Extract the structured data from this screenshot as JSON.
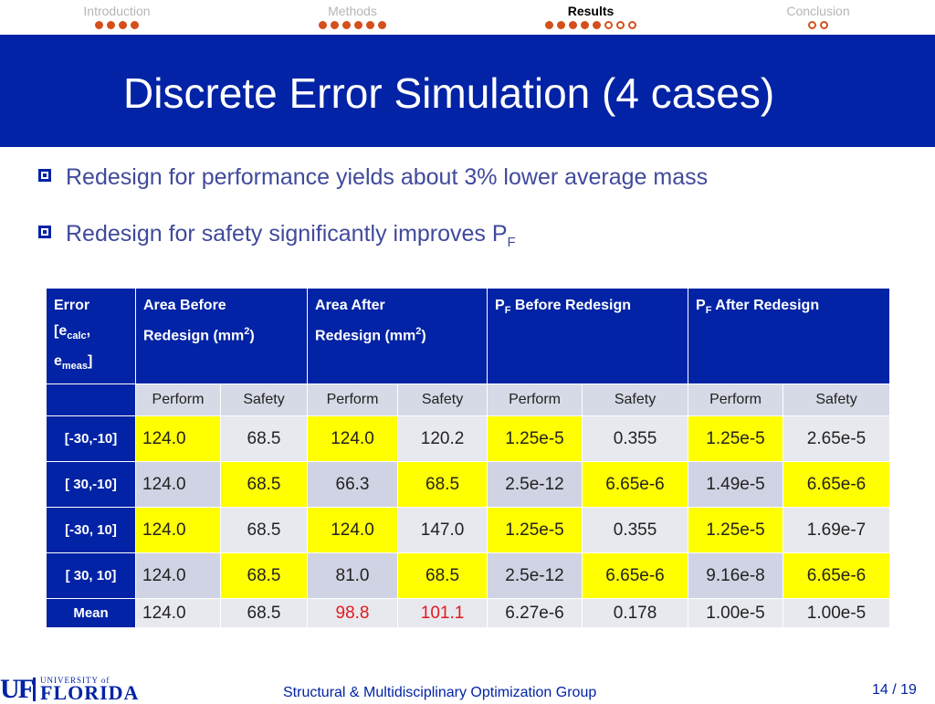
{
  "nav": {
    "sections": [
      {
        "label": "Introduction",
        "dots": [
          "filled",
          "filled",
          "filled",
          "filled"
        ],
        "active": false
      },
      {
        "label": "Methods",
        "dots": [
          "filled",
          "filled",
          "filled",
          "filled",
          "filled",
          "filled"
        ],
        "active": false
      },
      {
        "label": "Results",
        "dots": [
          "filled",
          "filled",
          "filled",
          "filled",
          "filled",
          "hollow",
          "hollow",
          "hollow"
        ],
        "active": true
      },
      {
        "label": "Conclusion",
        "dots": [
          "hollow",
          "hollow"
        ],
        "active": false
      }
    ]
  },
  "slide": {
    "title": "Discrete Error Simulation (4 cases)",
    "bullets": [
      {
        "text": "Redesign for performance yields about 3% lower average mass"
      },
      {
        "text": "Redesign for safety significantly improves P",
        "sub": "F"
      }
    ]
  },
  "table": {
    "headers": {
      "error_line1": "Error",
      "error_bracket": "[e",
      "error_calc": "calc",
      "error_comma": ",",
      "error_e": "e",
      "error_meas": "meas",
      "error_close": "]",
      "area_before_line1": "Area Before",
      "area_before_line2": "Redesign (mm",
      "area_before_sup": "2",
      "area_before_close": ")",
      "area_after_line1": "Area After",
      "area_after_line2": "Redesign (mm",
      "area_after_sup": "2",
      "area_after_close": ")",
      "pf_before_p": "P",
      "pf_before_sub": "F",
      "pf_before_rest": " Before Redesign",
      "pf_after_p": "P",
      "pf_after_sub": "F",
      "pf_after_rest": " After Redesign"
    },
    "subheaders": [
      "Perform",
      "Safety",
      "Perform",
      "Safety",
      "Perform",
      "Safety",
      "Perform",
      "Safety"
    ],
    "rows": [
      {
        "label": "[-30,-10]",
        "values": [
          "124.0",
          "68.5",
          "124.0",
          "120.2",
          "1.25e-5",
          "0.355",
          "1.25e-5",
          "2.65e-5"
        ]
      },
      {
        "label": "[ 30,-10]",
        "values": [
          "124.0",
          "68.5",
          "66.3",
          "68.5",
          "2.5e-12",
          "6.65e-6",
          "1.49e-5",
          "6.65e-6"
        ]
      },
      {
        "label": "[-30, 10]",
        "values": [
          "124.0",
          "68.5",
          "124.0",
          "147.0",
          "1.25e-5",
          "0.355",
          "1.25e-5",
          "1.69e-7"
        ]
      },
      {
        "label": "[ 30, 10]",
        "values": [
          "124.0",
          "68.5",
          "81.0",
          "68.5",
          "2.5e-12",
          "6.65e-6",
          "9.16e-8",
          "6.65e-6"
        ]
      },
      {
        "label": "Mean",
        "values": [
          "124.0",
          "68.5",
          "98.8",
          "101.1",
          "6.27e-6",
          "0.178",
          "1.00e-5",
          "1.00e-5"
        ]
      }
    ],
    "highlight_color": "#ffff00",
    "highlight_red": "#e11b1b"
  },
  "footer": {
    "logo_uf": "UF",
    "logo_university": "UNIVERSITY of",
    "logo_florida": "FLORIDA",
    "text": "Structural & Multidisciplinary Optimization Group",
    "page": "14 / 19"
  },
  "colors": {
    "brand_blue": "#0223a5",
    "nav_dot": "#d3501d",
    "bullet_text": "#404a9b"
  }
}
